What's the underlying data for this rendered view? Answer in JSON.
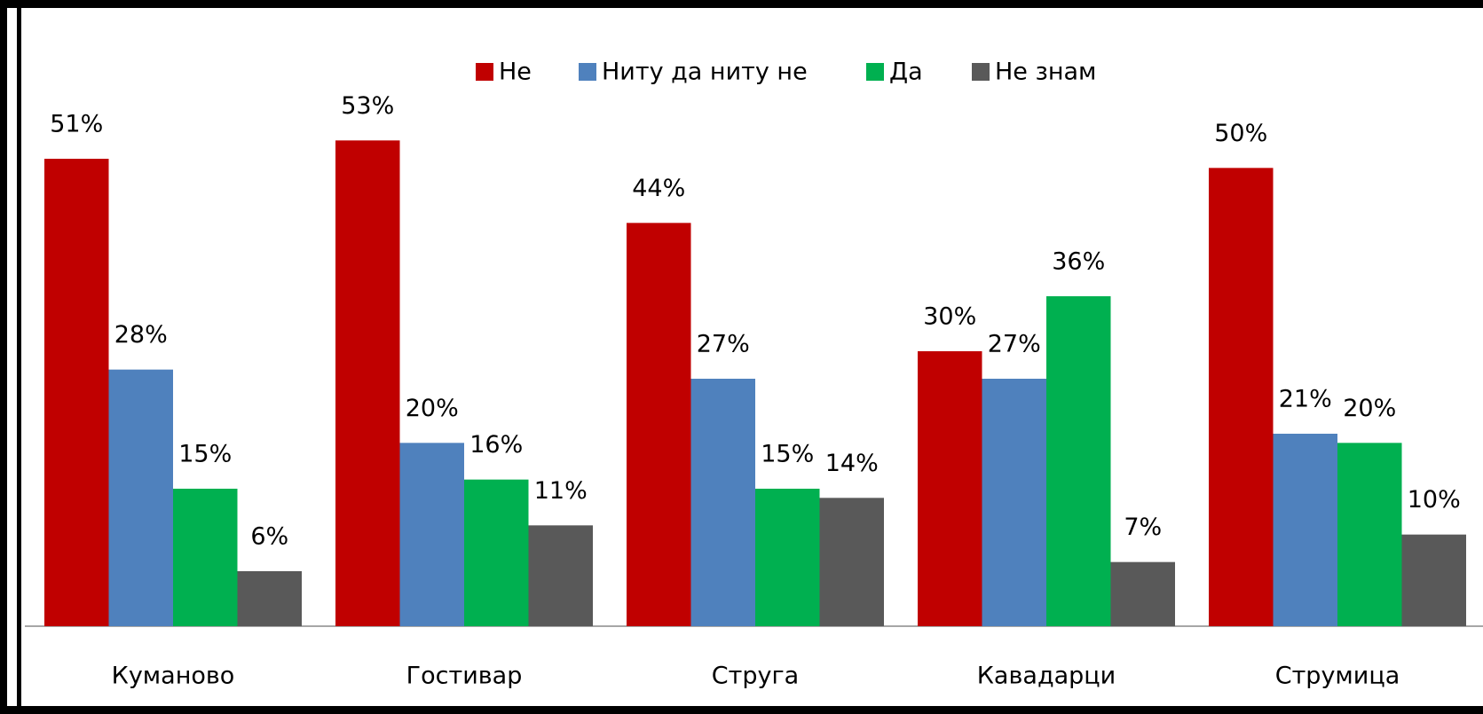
{
  "chart_data": {
    "type": "bar",
    "categories": [
      "Куманово",
      "Гостивар",
      "Струга",
      "Кавадарци",
      "Струмица"
    ],
    "series": [
      {
        "name": "Не",
        "color": "#c00000",
        "values": [
          51,
          53,
          44,
          30,
          50
        ],
        "value_labels": [
          "51%",
          "53%",
          "44%",
          "30%",
          "50%"
        ]
      },
      {
        "name": "Ниту да ниту не",
        "color": "#4f81bd",
        "values": [
          28,
          20,
          27,
          27,
          21
        ],
        "value_labels": [
          "28%",
          "20%",
          "27%",
          "27%",
          "21%"
        ]
      },
      {
        "name": "Да",
        "color": "#00b050",
        "values": [
          15,
          16,
          15,
          36,
          20
        ],
        "value_labels": [
          "15%",
          "16%",
          "15%",
          "36%",
          "20%"
        ]
      },
      {
        "name": "Не знам",
        "color": "#595959",
        "values": [
          6,
          11,
          14,
          7,
          10
        ],
        "value_labels": [
          "6%",
          "11%",
          "14%",
          "7%",
          "10%"
        ]
      }
    ],
    "ylim": [
      0,
      60
    ],
    "legend": "top"
  }
}
